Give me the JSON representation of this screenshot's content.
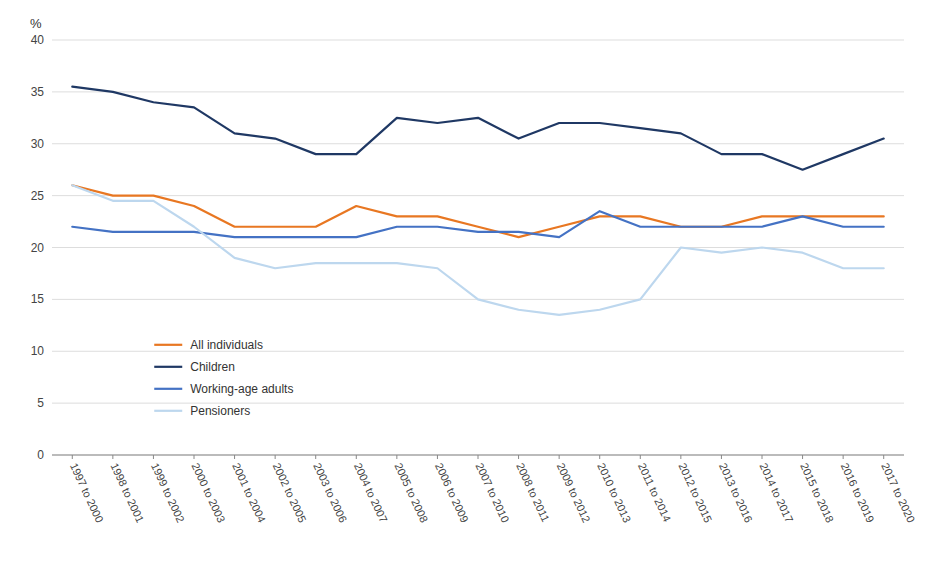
{
  "chart_data": {
    "type": "line",
    "ylabel": "%",
    "categories": [
      "1997 to 2000",
      "1998 to 2001",
      "1999 to 2002",
      "2000 to 2003",
      "2001 to 2004",
      "2002 to 2005",
      "2003 to 2006",
      "2004 to 2007",
      "2005 to 2008",
      "2006 to 2009",
      "2007 to 2010",
      "2008 to 2011",
      "2009 to 2012",
      "2010 to 2013",
      "2011 to 2014",
      "2012 to 2015",
      "2013 to 2016",
      "2014 to 2017",
      "2015 to 2018",
      "2016 to 2019",
      "2017 to 2020"
    ],
    "series": [
      {
        "name": "All individuals",
        "color": "#E87722",
        "values": [
          26,
          25,
          25,
          24,
          22,
          22,
          22,
          24,
          23,
          23,
          22,
          21,
          22,
          23,
          23,
          22,
          22,
          23,
          23,
          23,
          23
        ]
      },
      {
        "name": "Children",
        "color": "#1F3864",
        "values": [
          35.5,
          35,
          34,
          33.5,
          31,
          30.5,
          29,
          29,
          32.5,
          32,
          32.5,
          30.5,
          32,
          32,
          31.5,
          31,
          29,
          29,
          27.5,
          29,
          30.5
        ]
      },
      {
        "name": "Working-age adults",
        "color": "#4472C4",
        "values": [
          22,
          21.5,
          21.5,
          21.5,
          21,
          21,
          21,
          21,
          22,
          22,
          21.5,
          21.5,
          21,
          23.5,
          22,
          22,
          22,
          22,
          23,
          22,
          22
        ]
      },
      {
        "name": "Pensioners",
        "color": "#BDD7EE",
        "values": [
          26,
          24.5,
          24.5,
          22,
          19,
          18,
          18.5,
          18.5,
          18.5,
          18,
          15,
          14,
          13.5,
          14,
          15,
          20,
          19.5,
          20,
          19.5,
          18,
          18
        ]
      }
    ],
    "ylim": [
      0,
      40
    ],
    "yticks": [
      0,
      5,
      10,
      15,
      20,
      25,
      30,
      35,
      40
    ],
    "grid": true,
    "legend": "lower left"
  }
}
